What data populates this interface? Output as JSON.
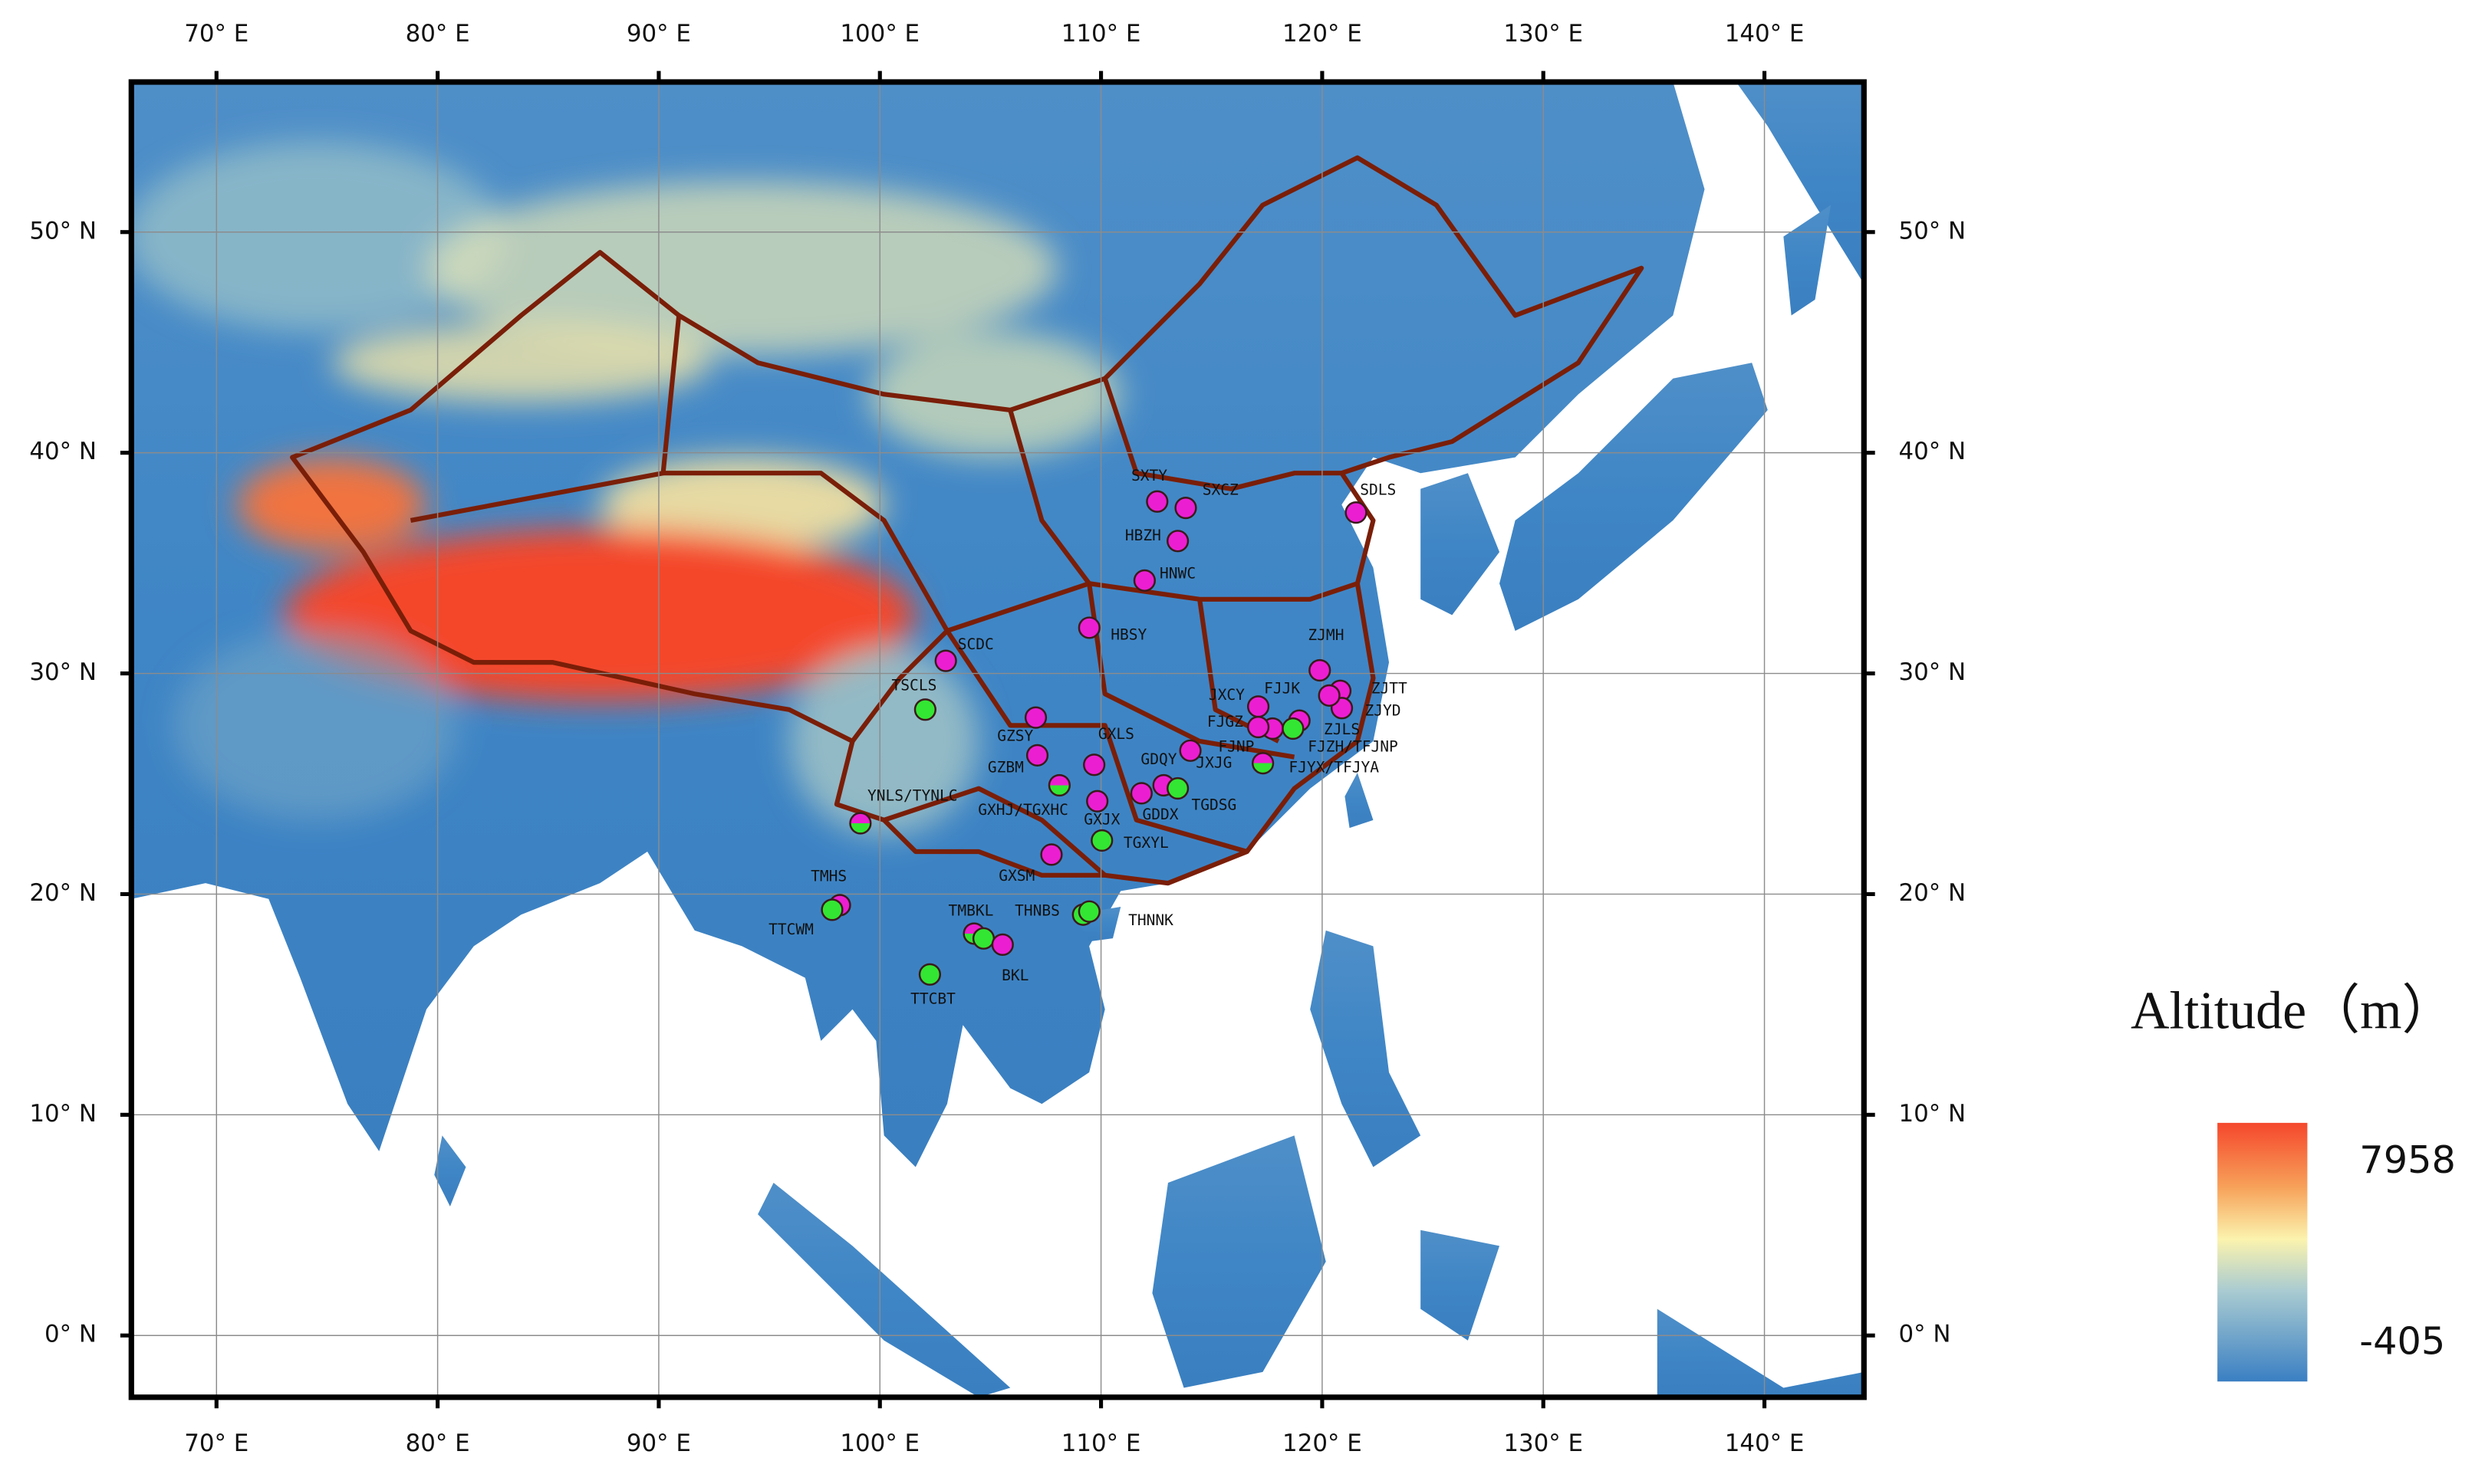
{
  "map": {
    "xlim": [
      66.15,
      144.5
    ],
    "ylim": [
      -2.8,
      56.8
    ],
    "grid": true,
    "xticks": [
      {
        "value": 70,
        "label": "70° E"
      },
      {
        "value": 80,
        "label": "80° E"
      },
      {
        "value": 90,
        "label": "90° E"
      },
      {
        "value": 100,
        "label": "100° E"
      },
      {
        "value": 110,
        "label": "110° E"
      },
      {
        "value": 120,
        "label": "120° E"
      },
      {
        "value": 130,
        "label": "130° E"
      },
      {
        "value": 140,
        "label": "140° E"
      }
    ],
    "yticks": [
      {
        "value": 0,
        "label": "0° N"
      },
      {
        "value": 10,
        "label": "10° N"
      },
      {
        "value": 20,
        "label": "20° N"
      },
      {
        "value": 30,
        "label": "30° N"
      },
      {
        "value": 40,
        "label": "40° N"
      },
      {
        "value": 50,
        "label": "50° N"
      }
    ],
    "sites": [
      {
        "label": "SXTY",
        "lon": 112.54,
        "lat": 37.79,
        "colors": [
          "#ec1ed2"
        ]
      },
      {
        "label": "SXCZ",
        "lon": 113.83,
        "lat": 37.5,
        "colors": [
          "#ec1ed2"
        ]
      },
      {
        "label": "SDLS",
        "lon": 121.53,
        "lat": 37.29,
        "colors": [
          "#ec1ed2"
        ]
      },
      {
        "label": "HBZH",
        "lon": 113.47,
        "lat": 36.0,
        "colors": [
          "#ec1ed2"
        ]
      },
      {
        "label": "HNWC",
        "lon": 111.97,
        "lat": 34.21,
        "colors": [
          "#ec1ed2"
        ]
      },
      {
        "label": "HBSY",
        "lon": 109.47,
        "lat": 32.07,
        "colors": [
          "#ec1ed2"
        ]
      },
      {
        "label": "SCDC",
        "lon": 102.98,
        "lat": 30.57,
        "colors": [
          "#ec1ed2"
        ]
      },
      {
        "label": "TSCLS",
        "lon": 102.05,
        "lat": 28.36,
        "colors": [
          "#33e633"
        ]
      },
      {
        "label": "ZJMH",
        "lon": 119.89,
        "lat": 30.14,
        "colors": [
          "#ec1ed2"
        ]
      },
      {
        "label": "ZJTT",
        "lon": 120.82,
        "lat": 29.21,
        "colors": [
          "#ec1ed2"
        ]
      },
      {
        "label": "ZJYD",
        "lon": 120.89,
        "lat": 28.43,
        "colors": [
          "#ec1ed2"
        ]
      },
      {
        "label": "ZJLS",
        "lon": 120.32,
        "lat": 29.0,
        "colors": [
          "#ec1ed2"
        ]
      },
      {
        "label": "JXCY",
        "lon": 117.11,
        "lat": 28.5,
        "colors": [
          "#ec1ed2"
        ]
      },
      {
        "label": "FJJK",
        "lon": 117.76,
        "lat": 27.5,
        "colors": [
          "#ec1ed2"
        ]
      },
      {
        "label": "FJGZ",
        "lon": 117.11,
        "lat": 27.57,
        "colors": [
          "#ec1ed2"
        ]
      },
      {
        "label": "FJNP",
        "lon": 118.97,
        "lat": 27.86,
        "colors": [
          "#ec1ed2"
        ]
      },
      {
        "label": "FJZH/TFJNP",
        "lon": 118.68,
        "lat": 27.5,
        "colors": [
          "#33e633"
        ]
      },
      {
        "label": "FJYX/TFJYA",
        "lon": 117.32,
        "lat": 25.93,
        "colors": [
          "#ec1ed2",
          "#33e633"
        ]
      },
      {
        "label": "JXJG",
        "lon": 114.04,
        "lat": 26.5,
        "colors": [
          "#ec1ed2"
        ]
      },
      {
        "label": "GXLS",
        "lon": 109.69,
        "lat": 25.86,
        "colors": [
          "#ec1ed2"
        ]
      },
      {
        "label": "GZSY",
        "lon": 107.05,
        "lat": 28.0,
        "colors": [
          "#ec1ed2"
        ]
      },
      {
        "label": "GZBM",
        "lon": 107.12,
        "lat": 26.29,
        "colors": [
          "#ec1ed2"
        ]
      },
      {
        "label": "GDQY",
        "lon": 111.83,
        "lat": 24.57,
        "colors": [
          "#ec1ed2"
        ]
      },
      {
        "label": "GXHJ/TGXHC",
        "lon": 108.12,
        "lat": 24.93,
        "colors": [
          "#ec1ed2",
          "#33e633"
        ]
      },
      {
        "label": "GDDX",
        "lon": 112.83,
        "lat": 24.93,
        "colors": [
          "#ec1ed2"
        ]
      },
      {
        "label": "TGDSG",
        "lon": 113.47,
        "lat": 24.79,
        "colors": [
          "#33e633"
        ]
      },
      {
        "label": "GXJX",
        "lon": 109.83,
        "lat": 24.21,
        "colors": [
          "#ec1ed2"
        ]
      },
      {
        "label": "TGXYL",
        "lon": 110.04,
        "lat": 22.43,
        "colors": [
          "#33e633"
        ]
      },
      {
        "label": "GXSM",
        "lon": 107.76,
        "lat": 21.79,
        "colors": [
          "#ec1ed2"
        ]
      },
      {
        "label": "YNLS/TYNLC",
        "lon": 99.12,
        "lat": 23.21,
        "colors": [
          "#ec1ed2",
          "#33e633"
        ]
      },
      {
        "label": "TMHS",
        "lon": 98.19,
        "lat": 19.5,
        "colors": [
          "#ec1ed2"
        ]
      },
      {
        "label": "TTCWM",
        "lon": 97.84,
        "lat": 19.29,
        "colors": [
          "#33e633"
        ]
      },
      {
        "label": "TMBKL",
        "lon": 104.26,
        "lat": 18.21,
        "colors": [
          "#ec1ed2",
          "#33e633"
        ]
      },
      {
        "label": null,
        "lon": 104.69,
        "lat": 17.99,
        "colors": [
          "#33e633"
        ]
      },
      {
        "label": "BKL",
        "lon": 105.55,
        "lat": 17.71,
        "colors": [
          "#ec1ed2"
        ]
      },
      {
        "label": "TTCBT",
        "lon": 102.26,
        "lat": 16.36,
        "colors": [
          "#33e633"
        ]
      },
      {
        "label": "THNBS",
        "lon": 109.19,
        "lat": 19.07,
        "colors": [
          "#33e633"
        ]
      },
      {
        "label": "THNNK",
        "lon": 109.47,
        "lat": 19.21,
        "colors": [
          "#33e633"
        ]
      }
    ],
    "legend": {
      "title": "Altitude（m）",
      "max": 7958,
      "min": -405
    }
  }
}
